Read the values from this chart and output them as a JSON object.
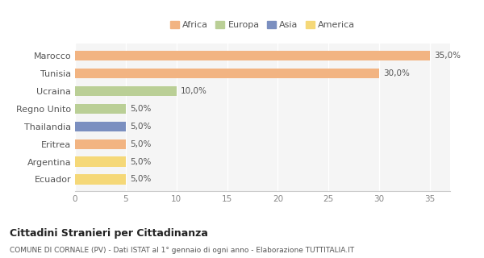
{
  "categories": [
    "Marocco",
    "Tunisia",
    "Ucraina",
    "Regno Unito",
    "Thailandia",
    "Eritrea",
    "Argentina",
    "Ecuador"
  ],
  "values": [
    35.0,
    30.0,
    10.0,
    5.0,
    5.0,
    5.0,
    5.0,
    5.0
  ],
  "colors": [
    "#F2B482",
    "#F2B482",
    "#BACF96",
    "#BACF96",
    "#7B8FC0",
    "#F2B482",
    "#F5D878",
    "#F5D878"
  ],
  "labels": [
    "35,0%",
    "30,0%",
    "10,0%",
    "5,0%",
    "5,0%",
    "5,0%",
    "5,0%",
    "5,0%"
  ],
  "legend_labels": [
    "Africa",
    "Europa",
    "Asia",
    "America"
  ],
  "legend_colors": [
    "#F2B482",
    "#BACF96",
    "#7B8FC0",
    "#F5D878"
  ],
  "title": "Cittadini Stranieri per Cittadinanza",
  "subtitle": "COMUNE DI CORNALE (PV) - Dati ISTAT al 1° gennaio di ogni anno - Elaborazione TUTTITALIA.IT",
  "xlim": [
    0,
    37
  ],
  "xticks": [
    0,
    5,
    10,
    15,
    20,
    25,
    30,
    35
  ],
  "background_color": "#ffffff",
  "plot_bg_color": "#f5f5f5",
  "grid_color": "#ffffff"
}
